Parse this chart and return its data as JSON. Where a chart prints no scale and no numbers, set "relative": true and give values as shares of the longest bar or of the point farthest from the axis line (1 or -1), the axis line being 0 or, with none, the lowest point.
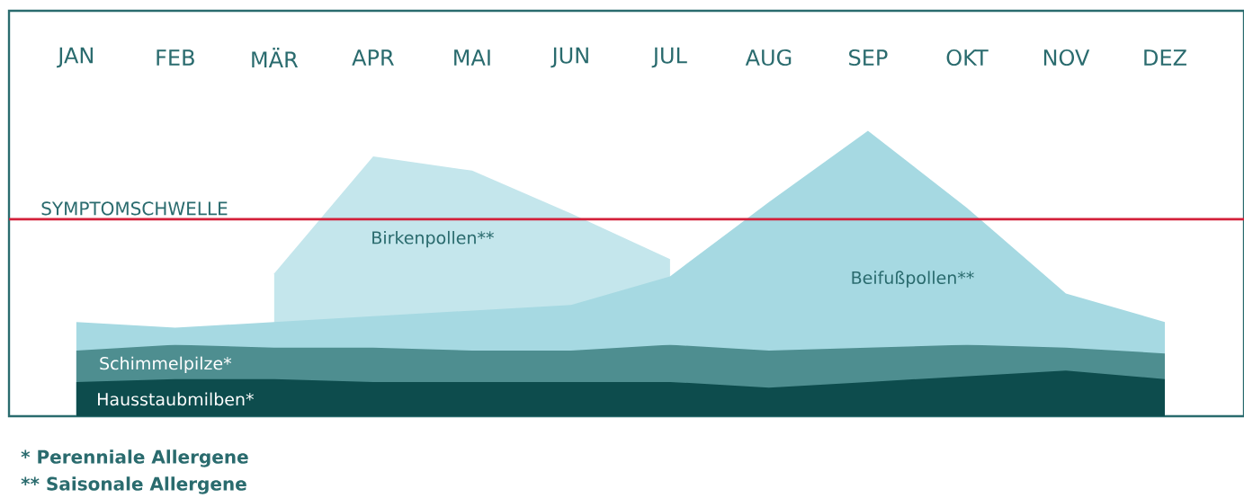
{
  "chart_data": {
    "type": "area",
    "relative": true,
    "categories": [
      "JAN",
      "FEB",
      "MÄR",
      "APR",
      "MAI",
      "JUN",
      "JUL",
      "AUG",
      "SEP",
      "OKT",
      "NOV",
      "DEZ"
    ],
    "series": [
      {
        "name": "Birkenpollen**",
        "color": "#c4e6ec",
        "values": [
          null,
          null,
          0.5,
          0.91,
          0.86,
          0.71,
          0.55,
          null,
          null,
          null,
          null,
          null
        ]
      },
      {
        "name": "Beifußpollen**",
        "color": "#a6d9e2",
        "values": [
          0.33,
          0.31,
          0.33,
          0.35,
          0.37,
          0.39,
          0.49,
          0.75,
          1.0,
          0.73,
          0.43,
          0.33
        ]
      },
      {
        "name": "Schimmelpilze*",
        "color": "#4e8e90",
        "values": [
          0.23,
          0.25,
          0.24,
          0.24,
          0.23,
          0.23,
          0.25,
          0.23,
          0.24,
          0.25,
          0.24,
          0.22
        ]
      },
      {
        "name": "Hausstaubmilben*",
        "color": "#0d4c4d",
        "values": [
          0.12,
          0.13,
          0.13,
          0.12,
          0.12,
          0.12,
          0.12,
          0.1,
          0.12,
          0.14,
          0.16,
          0.13
        ]
      }
    ],
    "ref_lines": [
      {
        "axis": "y",
        "value": 0.69,
        "label": "SYMPTOMSCHWELLE",
        "color": "#d3203a"
      }
    ],
    "annotations": [
      "* Perenniale Allergene",
      "** Saisonale Allergene"
    ]
  }
}
